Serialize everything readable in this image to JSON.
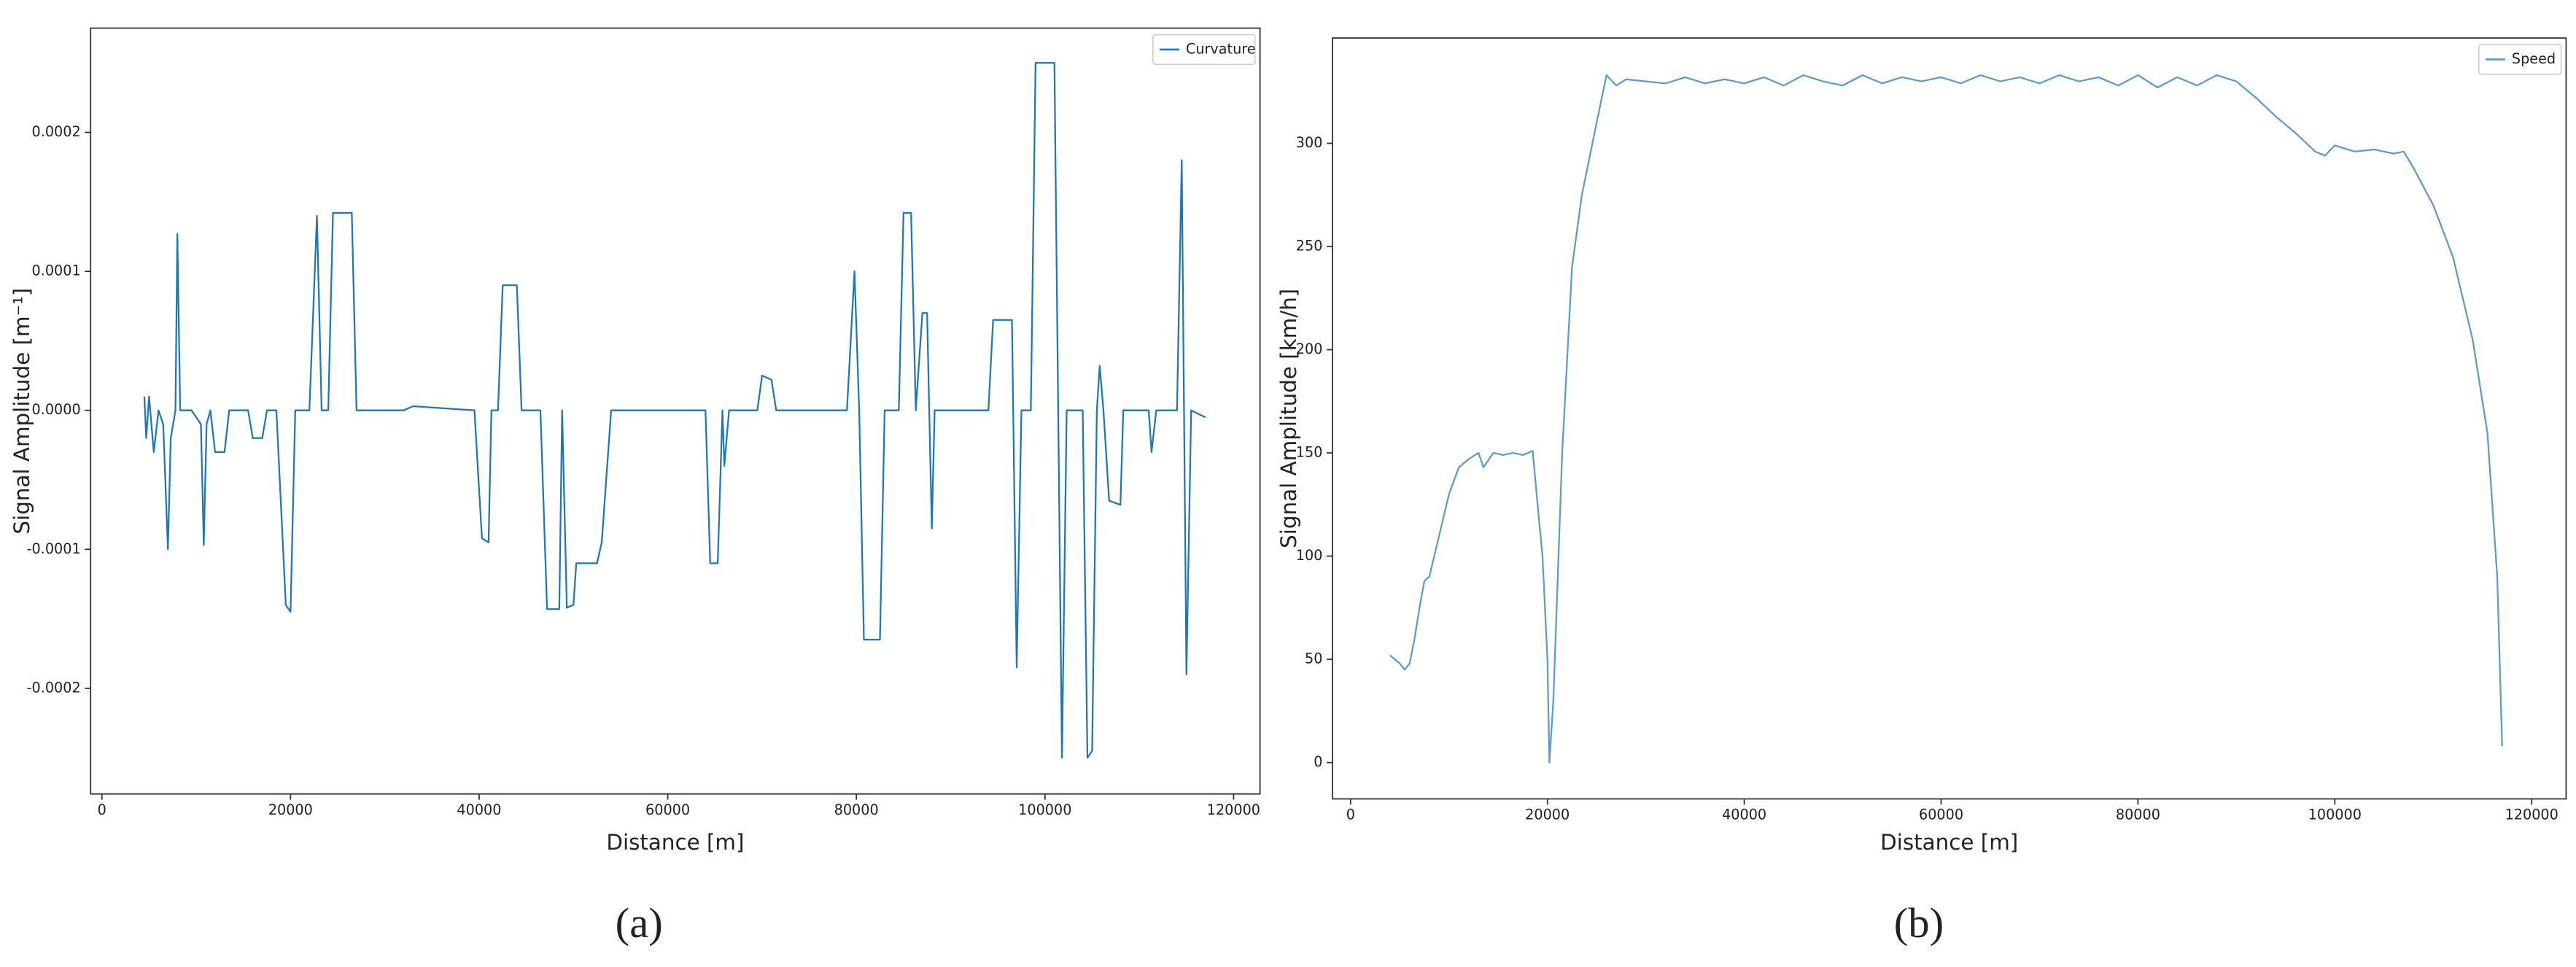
{
  "chart_data": [
    {
      "type": "line",
      "panel_label": "(a)",
      "x_label": "Distance [m]",
      "y_label": "Signal Amplitude [m⁻¹]",
      "xlim": [
        -1200,
        122800
      ],
      "ylim": [
        -0.000276,
        0.000275
      ],
      "xticks": [
        0,
        20000,
        40000,
        60000,
        80000,
        100000,
        120000
      ],
      "yticks": [
        -0.0002,
        -0.0001,
        {
          "value": 0,
          "label": "0.0000"
        },
        0.0001,
        0.0002
      ],
      "legend": "upper right",
      "x": [
        4500,
        4700,
        5000,
        5500,
        6000,
        6500,
        7000,
        7300,
        7800,
        8000,
        8300,
        9500,
        10500,
        10800,
        11100,
        11500,
        12000,
        13000,
        13500,
        15500,
        16000,
        17000,
        17500,
        18500,
        19500,
        20000,
        20500,
        22000,
        22800,
        23300,
        24000,
        24500,
        26500,
        27000,
        32000,
        33000,
        39500,
        40300,
        41000,
        41300,
        42000,
        42500,
        44000,
        44500,
        46500,
        47200,
        48500,
        48800,
        49300,
        50000,
        50300,
        52500,
        53000,
        54000,
        64000,
        64500,
        65300,
        65800,
        66000,
        66500,
        69500,
        70000,
        71000,
        71500,
        79000,
        79800,
        80300,
        80800,
        82500,
        83000,
        84500,
        85000,
        85800,
        86300,
        87000,
        87500,
        88000,
        88300,
        94000,
        94500,
        96500,
        97000,
        97500,
        98500,
        99000,
        101000,
        101800,
        102300,
        104000,
        104500,
        105000,
        105500,
        105800,
        106200,
        106800,
        108000,
        108300,
        111000,
        111300,
        111800,
        114000,
        114500,
        115000,
        115500,
        117000
      ],
      "series": [
        {
          "name": "Curvature",
          "color": "#1f77b4",
          "values": [
            1e-05,
            -2e-05,
            1e-05,
            -3e-05,
            0,
            -1e-05,
            -0.0001,
            -2e-05,
            0,
            0.000127,
            0,
            0,
            -1e-05,
            -9.7e-05,
            -1e-05,
            0,
            -3e-05,
            -3e-05,
            0,
            0,
            -2e-05,
            -2e-05,
            0,
            0,
            -0.00014,
            -0.000145,
            0,
            0,
            0.00014,
            0,
            0,
            0.000142,
            0.000142,
            0,
            0,
            3e-06,
            0,
            -9.2e-05,
            -9.5e-05,
            0,
            0,
            9e-05,
            9e-05,
            0,
            0,
            -0.000143,
            -0.000143,
            0,
            -0.000142,
            -0.00014,
            -0.00011,
            -0.00011,
            -9.5e-05,
            0,
            0,
            -0.00011,
            -0.00011,
            0,
            -4e-05,
            0,
            0,
            2.5e-05,
            2.2e-05,
            0,
            0,
            0.0001,
            0,
            -0.000165,
            -0.000165,
            0,
            0,
            0.000142,
            0.000142,
            0,
            7e-05,
            7e-05,
            -8.5e-05,
            0,
            0,
            6.5e-05,
            6.5e-05,
            -0.000185,
            0,
            0,
            0.00025,
            0.00025,
            -0.00025,
            0,
            0,
            -0.00025,
            -0.000245,
            0,
            3.2e-05,
            0,
            -6.5e-05,
            -6.8e-05,
            0,
            0,
            -3e-05,
            0,
            0,
            0.00018,
            -0.00019,
            0,
            -5e-06
          ]
        }
      ]
    },
    {
      "type": "line",
      "panel_label": "(b)",
      "x_label": "Distance [m]",
      "y_label": "Signal Amplitude [km/h]",
      "xlim": [
        -1840,
        123500
      ],
      "ylim": [
        -17.6,
        351
      ],
      "xticks": [
        0,
        20000,
        40000,
        60000,
        80000,
        100000,
        120000
      ],
      "yticks": [
        0,
        50,
        100,
        150,
        200,
        250,
        300
      ],
      "legend": "upper right",
      "x": [
        4000,
        5000,
        5500,
        6000,
        6500,
        7000,
        7500,
        8000,
        8500,
        9000,
        9500,
        10000,
        11000,
        12000,
        13000,
        13500,
        14500,
        15500,
        16500,
        17500,
        18500,
        19000,
        19500,
        20000,
        20200,
        20600,
        21500,
        22500,
        23500,
        25000,
        26000,
        27000,
        28000,
        30000,
        32000,
        34000,
        36000,
        38000,
        40000,
        42000,
        44000,
        46000,
        48000,
        50000,
        52000,
        54000,
        56000,
        58000,
        60000,
        62000,
        64000,
        66000,
        68000,
        70000,
        72000,
        74000,
        76000,
        78000,
        80000,
        82000,
        84000,
        86000,
        88000,
        90000,
        92000,
        94000,
        96000,
        98000,
        99000,
        100000,
        102000,
        104000,
        106000,
        107000,
        108000,
        110000,
        112000,
        114000,
        115500,
        116500,
        117000
      ],
      "series": [
        {
          "name": "Speed",
          "color": "#5b9bd0",
          "values": [
            52,
            48,
            45,
            48,
            60,
            75,
            88,
            90,
            100,
            110,
            120,
            130,
            143,
            147,
            150,
            143,
            150,
            149,
            150,
            149,
            151,
            125,
            100,
            50,
            0,
            30,
            150,
            240,
            275,
            310,
            333,
            328,
            331,
            330,
            329,
            332,
            329,
            331,
            329,
            332,
            328,
            333,
            330,
            328,
            333,
            329,
            332,
            330,
            332,
            329,
            333,
            330,
            332,
            329,
            333,
            330,
            332,
            328,
            333,
            327,
            332,
            328,
            333,
            330,
            322,
            313,
            305,
            296,
            294,
            299,
            296,
            297,
            295,
            296,
            288,
            270,
            245,
            205,
            160,
            90,
            8
          ]
        }
      ]
    }
  ]
}
